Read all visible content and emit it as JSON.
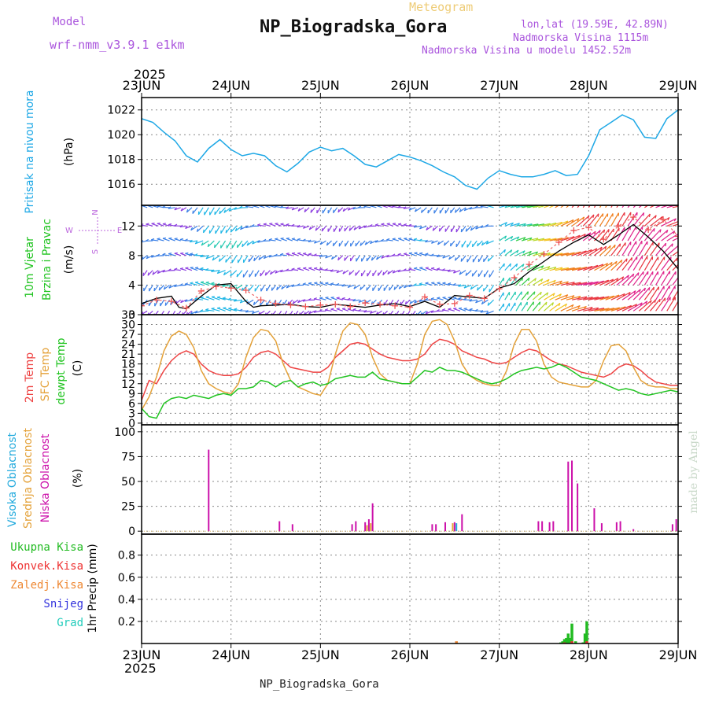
{
  "header": {
    "model_label": "Model",
    "model_name": "wrf-nmm_v3.9.1 e1km",
    "product": "Meteogram",
    "station": "NP_Biogradska_Gora",
    "coords": "lon,lat (19.59E, 42.89N)",
    "altitude": "Nadmorska Visina 1115m",
    "model_altitude": "Nadmorska Visina u modelu 1452.52m",
    "year": "2025",
    "footer": "NP_Biogradska_Gora",
    "credit": "made by Angel"
  },
  "colors": {
    "pressure": "#1ea8e6",
    "t2m": "#ee4444",
    "sfc": "#e4a23a",
    "dewpt": "#22c422",
    "gust": "#000000",
    "cloud_high": "#22aadd",
    "cloud_mid": "#e4a23a",
    "cloud_low": "#cc11aa",
    "rain_total": "#22bb22",
    "rain_conv": "#ee3333",
    "rain_frozen": "#ee8833",
    "snow": "#3333dd",
    "hail": "#22ccbb",
    "model_text": "#9955cc",
    "grid": "#888888"
  },
  "chart_data": {
    "type": "line",
    "title": "NP_Biogradska_Gora",
    "x": {
      "dates": [
        "23JUN",
        "24JUN",
        "25JUN",
        "26JUN",
        "27JUN",
        "28JUN",
        "29JUN"
      ],
      "range_hours": [
        0,
        144
      ],
      "year": "2025"
    },
    "panels": [
      {
        "id": "pressure",
        "type": "line",
        "ylabel": [
          "Pritisak na nivou mora",
          "(hPa)"
        ],
        "ylim": [
          1014.3,
          1023.0
        ],
        "yticks": [
          1016,
          1018,
          1020,
          1022
        ],
        "series": [
          {
            "key": "pressure",
            "hours": [
              0,
              3,
              6,
              9,
              12,
              15,
              18,
              21,
              24,
              27,
              30,
              33,
              36,
              39,
              42,
              45,
              48,
              51,
              54,
              57,
              60,
              63,
              66,
              69,
              72,
              75,
              78,
              81,
              84,
              87,
              90,
              93,
              96,
              99,
              102,
              105,
              108,
              111,
              114,
              117,
              120,
              123,
              126,
              129,
              132,
              135,
              138,
              141,
              144
            ],
            "values": [
              1021.3,
              1021.0,
              1020.2,
              1019.5,
              1018.3,
              1017.8,
              1018.9,
              1019.6,
              1018.8,
              1018.3,
              1018.5,
              1018.3,
              1017.5,
              1017.0,
              1017.7,
              1018.6,
              1019.0,
              1018.7,
              1018.9,
              1018.3,
              1017.6,
              1017.4,
              1017.9,
              1018.4,
              1018.2,
              1017.9,
              1017.5,
              1017.0,
              1016.6,
              1015.9,
              1015.6,
              1016.5,
              1017.1,
              1016.8,
              1016.6,
              1016.6,
              1016.8,
              1017.1,
              1016.7,
              1016.8,
              1018.3,
              1020.4,
              1021.0,
              1021.6,
              1021.2,
              1019.8,
              1019.7,
              1021.3,
              1022.0
            ]
          }
        ]
      },
      {
        "id": "wind",
        "type": "line",
        "ylabel": [
          "10m Vjetar",
          "Brzina i Pravac",
          "(m/s)"
        ],
        "compass": "N E S W",
        "ylim": [
          0,
          14.8
        ],
        "yticks": [
          0,
          4,
          8,
          12
        ],
        "barb_levels": [
          0.5,
          2,
          4,
          6,
          8,
          10,
          12,
          14.5
        ],
        "series": [
          {
            "key": "gust",
            "name": "",
            "hours": [
              0,
              4,
              8,
              10,
              12,
              16,
              20,
              24,
              28,
              30,
              32,
              36,
              40,
              44,
              48,
              52,
              56,
              60,
              64,
              68,
              72,
              76,
              80,
              84,
              88,
              92,
              96,
              100,
              104,
              108,
              112,
              116,
              120,
              124,
              128,
              132,
              136,
              140,
              144
            ],
            "values": [
              1.5,
              2.2,
              2.5,
              1.0,
              0.8,
              2.5,
              4.0,
              4.2,
              1.8,
              1.0,
              1.2,
              1.3,
              1.4,
              1.1,
              1.0,
              1.4,
              1.2,
              1.0,
              1.3,
              1.5,
              1.1,
              1.8,
              1.0,
              2.6,
              2.4,
              2.2,
              3.6,
              4.2,
              5.8,
              7.2,
              8.6,
              9.8,
              10.8,
              9.5,
              10.8,
              12.2,
              10.5,
              8.6,
              6.2
            ]
          },
          {
            "key": "wspd",
            "name": "",
            "hours": [
              0,
              4,
              8,
              12,
              16,
              20,
              24,
              28,
              32,
              36,
              40,
              44,
              48,
              52,
              56,
              60,
              64,
              68,
              72,
              76,
              80,
              84,
              88,
              92,
              96,
              100,
              104,
              108,
              112,
              116,
              120,
              124,
              128,
              132,
              136,
              140,
              144
            ],
            "values": [
              1.2,
              2.0,
              1.8,
              0.9,
              3.2,
              3.8,
              3.6,
              3.3,
              2.0,
              1.5,
              1.3,
              1.1,
              1.3,
              1.4,
              1.1,
              1.6,
              1.4,
              1.2,
              1.0,
              2.4,
              1.4,
              1.5,
              2.6,
              2.2,
              3.5,
              5.0,
              6.8,
              8.2,
              9.8,
              11.4,
              11.8,
              10.2,
              12.0,
              13.2,
              11.5,
              12.9,
              10.6
            ]
          }
        ]
      },
      {
        "id": "temperature",
        "type": "line",
        "ylabel": [
          "2m Temp",
          "SFC Temp",
          "dewpt Temp",
          "(C)"
        ],
        "ylim": [
          -0.5,
          33
        ],
        "yticks": [
          0,
          3,
          6,
          9,
          12,
          15,
          18,
          21,
          24,
          27,
          30,
          33
        ],
        "series": [
          {
            "key": "t2m",
            "name": "2m Temp",
            "hours": [
              0,
              2,
              4,
              6,
              8,
              10,
              12,
              14,
              16,
              18,
              20,
              22,
              24,
              26,
              28,
              30,
              32,
              34,
              36,
              38,
              40,
              42,
              44,
              46,
              48,
              50,
              52,
              54,
              56,
              58,
              60,
              62,
              64,
              66,
              68,
              70,
              72,
              74,
              76,
              78,
              80,
              82,
              84,
              86,
              88,
              90,
              92,
              94,
              96,
              98,
              100,
              102,
              104,
              106,
              108,
              110,
              112,
              114,
              116,
              118,
              120,
              122,
              124,
              126,
              128,
              130,
              132,
              134,
              136,
              138,
              140,
              142,
              144
            ],
            "values": [
              7,
              13,
              12,
              16,
              19,
              21,
              22,
              21,
              18,
              16,
              15,
              14.5,
              14.5,
              15,
              17,
              20,
              21.5,
              22,
              21,
              19,
              17,
              16.5,
              16,
              15.5,
              15.5,
              17,
              20,
              22,
              24,
              24.5,
              24,
              22.5,
              21,
              20,
              19.5,
              19,
              19,
              19.5,
              21,
              24,
              25.5,
              25,
              24,
              22,
              21,
              20,
              19.5,
              18.5,
              18,
              18.5,
              20,
              21.5,
              22.5,
              22,
              20.5,
              19,
              18,
              17.5,
              16.5,
              15.5,
              15,
              14.5,
              14,
              15,
              17,
              18,
              17.5,
              16,
              14,
              12.5,
              12,
              11.5,
              11.5
            ]
          },
          {
            "key": "sfc",
            "name": "SFC Temp",
            "hours": [
              0,
              2,
              4,
              6,
              8,
              10,
              12,
              14,
              16,
              18,
              20,
              22,
              24,
              26,
              28,
              30,
              32,
              34,
              36,
              38,
              40,
              42,
              44,
              46,
              48,
              50,
              52,
              54,
              56,
              58,
              60,
              62,
              64,
              66,
              68,
              70,
              72,
              74,
              76,
              78,
              80,
              82,
              84,
              86,
              88,
              90,
              92,
              94,
              96,
              98,
              100,
              102,
              104,
              106,
              108,
              110,
              112,
              114,
              116,
              118,
              120,
              122,
              124,
              126,
              128,
              130,
              132,
              134,
              136,
              138,
              140,
              142,
              144
            ],
            "values": [
              4,
              8,
              14,
              22,
              26.5,
              28,
              27,
              23,
              16,
              12,
              10.5,
              9.5,
              9,
              12,
              20,
              26,
              28.5,
              28,
              25,
              18,
              13,
              11,
              10,
              9,
              8.5,
              12,
              21,
              28,
              30.5,
              30,
              27,
              20,
              15,
              13,
              12.5,
              12,
              12,
              18,
              27,
              31,
              31.5,
              30,
              25,
              18,
              14.5,
              13,
              12,
              11.5,
              11.5,
              16,
              24,
              28.5,
              28.5,
              25,
              18,
              14,
              12.5,
              12,
              11.5,
              11,
              11,
              13,
              19,
              23.5,
              24,
              22,
              17,
              13,
              11.5,
              11,
              11,
              10.5,
              10.5
            ]
          },
          {
            "key": "dewpt",
            "name": "dewpt Temp",
            "hours": [
              0,
              2,
              4,
              6,
              8,
              10,
              12,
              14,
              16,
              18,
              20,
              22,
              24,
              26,
              28,
              30,
              32,
              34,
              36,
              38,
              40,
              42,
              44,
              46,
              48,
              50,
              52,
              54,
              56,
              58,
              60,
              62,
              64,
              66,
              68,
              70,
              72,
              74,
              76,
              78,
              80,
              82,
              84,
              86,
              88,
              90,
              92,
              94,
              96,
              98,
              100,
              102,
              104,
              106,
              108,
              110,
              112,
              114,
              116,
              118,
              120,
              122,
              124,
              126,
              128,
              130,
              132,
              134,
              136,
              138,
              140,
              142,
              144
            ],
            "values": [
              4.5,
              2,
              1.5,
              6,
              7.5,
              8,
              7.5,
              8.5,
              8,
              7.5,
              8.5,
              9,
              8.5,
              10.5,
              10.5,
              11,
              13,
              12.5,
              11,
              12.5,
              13,
              11,
              12,
              12.5,
              11.5,
              12,
              13.5,
              14,
              14.5,
              14,
              14,
              15.5,
              13.5,
              13,
              12.5,
              12,
              12,
              14,
              16,
              15.5,
              17,
              16,
              16,
              15.5,
              14.5,
              13.5,
              12.5,
              12,
              12.5,
              13.5,
              15,
              16,
              16.5,
              17,
              16.5,
              17,
              18,
              17,
              15.5,
              14,
              13.5,
              13,
              12,
              11,
              10,
              10.5,
              10,
              9,
              8.5,
              9,
              9.5,
              10,
              9.5
            ]
          }
        ]
      },
      {
        "id": "cloud",
        "type": "bar",
        "ylabel": [
          "Visoka Oblacnost",
          "Srednja Oblacnost",
          "Niska Oblacnost",
          "(%)"
        ],
        "ylim": [
          -3,
          107
        ],
        "yticks": [
          0,
          25,
          50,
          75,
          100
        ],
        "series": [
          {
            "key": "cloud_low",
            "name": "Niska Oblacnost",
            "hours": [
              18.0,
              37.0,
              40.5,
              56.5,
              57.5,
              60.0,
              61.0,
              62.0,
              78.0,
              79.0,
              81.5,
              84.0,
              86.0,
              106.5,
              107.5,
              109.5,
              110.5,
              114.5,
              115.5,
              117.0,
              121.5,
              123.5,
              127.5,
              128.5,
              132.0,
              142.5,
              143.5
            ],
            "values": [
              82,
              10,
              7,
              7,
              10,
              9,
              12,
              28,
              7,
              7,
              9,
              9,
              17,
              10,
              10,
              9,
              10,
              70,
              71,
              48,
              23,
              8,
              9,
              10,
              2,
              7,
              12
            ]
          },
          {
            "key": "cloud_mid",
            "name": "Srednja Oblacnost",
            "hours": [
              60.5,
              61.5,
              83.5
            ],
            "values": [
              6,
              8,
              8
            ]
          },
          {
            "key": "cloud_high",
            "name": "Visoka Oblacnost",
            "hours": [
              84.5
            ],
            "values": [
              8
            ]
          }
        ]
      },
      {
        "id": "precip",
        "type": "bar",
        "ylabel": [
          "1hr Precip (mm)"
        ],
        "legend": [
          "Ukupna Kisa",
          "Konvek.Kisa",
          "Zaledj.Kisa",
          "Snijeg",
          "Grad"
        ],
        "ylim": [
          0,
          0.99
        ],
        "yticks": [
          0.2,
          0.4,
          0.6,
          0.8
        ],
        "series": [
          {
            "key": "rain_total",
            "name": "Ukupna Kisa",
            "hours": [
              112.5,
              113.0,
              113.5,
              114.0,
              114.5,
              115.0,
              115.5,
              116.5,
              118.5,
              119.0,
              119.5
            ],
            "values": [
              0.01,
              0.02,
              0.04,
              0.05,
              0.09,
              0.05,
              0.18,
              0.02,
              0.01,
              0.09,
              0.2
            ]
          },
          {
            "key": "rain_conv",
            "name": "Konvek.Kisa",
            "hours": [
              113.5,
              115.5,
              119.5
            ],
            "values": [
              0.01,
              0.02,
              0.02
            ]
          },
          {
            "key": "rain_frozen",
            "name": "Zaledj.Kisa",
            "hours": [
              84.5
            ],
            "values": [
              0.02
            ]
          }
        ]
      }
    ]
  }
}
